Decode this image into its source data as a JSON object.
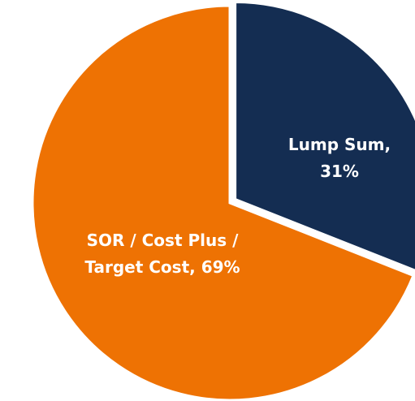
{
  "chart_data": {
    "type": "pie",
    "values": [
      31,
      69
    ],
    "value_labels": [
      [
        "Lump Sum,",
        "31%"
      ],
      [
        "SOR / Cost Plus /",
        "Target Cost, 69%"
      ]
    ],
    "colors": [
      "#142d52",
      "#ee7203"
    ]
  }
}
